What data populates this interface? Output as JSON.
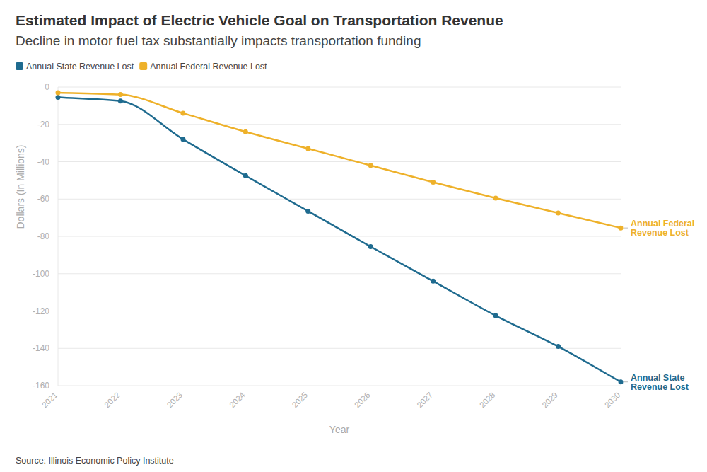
{
  "chart_data": {
    "type": "line",
    "title": "Estimated Impact of Electric Vehicle Goal on Transportation Revenue",
    "subtitle": "Decline in motor fuel tax substantially impacts transportation funding",
    "x_label": "Year",
    "y_label": "Dollars (In Millions)",
    "source": "Source: Illinois Economic Policy Institute",
    "categories": [
      "2021",
      "2022",
      "2023",
      "2024",
      "2025",
      "2026",
      "2027",
      "2028",
      "2029",
      "2030"
    ],
    "series": [
      {
        "name": "Annual State Revenue Lost",
        "color": "#1f6b8f",
        "marker": "circle",
        "line_style": "solid",
        "values": [
          -5.5,
          -7.5,
          -28,
          -47.5,
          -66.5,
          -85.5,
          -104,
          -122.5,
          -139,
          -158
        ]
      },
      {
        "name": "Annual Federal Revenue Lost",
        "color": "#eeb12a",
        "marker": "circle",
        "line_style": "solid",
        "values": [
          -3,
          -4,
          -14,
          -24,
          -33,
          -42,
          -51,
          -59.5,
          -67.5,
          -75.5
        ]
      }
    ],
    "ylim": [
      -160,
      0
    ],
    "yticks": [
      0,
      -20,
      -40,
      -60,
      -80,
      -100,
      -120,
      -140,
      -160
    ],
    "grid": true,
    "legend": "top-left"
  }
}
